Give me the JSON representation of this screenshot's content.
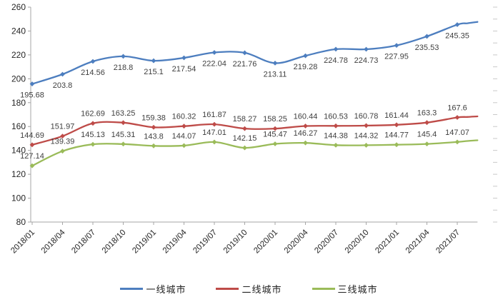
{
  "chart_data": {
    "type": "line",
    "title": "",
    "xlabel": "",
    "ylabel": "",
    "grid": false,
    "legend_position": "bottom",
    "y_axis": {
      "min": 80,
      "max": 260,
      "step": 20
    },
    "y_ticks": [
      "260",
      "240",
      "220",
      "200",
      "180",
      "160",
      "140",
      "120",
      "100",
      "80"
    ],
    "x": [
      "2018/01",
      "2018/04",
      "2018/07",
      "2018/10",
      "2019/01",
      "2019/04",
      "2019/07",
      "2019/10",
      "2020/01",
      "2020/04",
      "2020/07",
      "2020/10",
      "2021/01",
      "2021/04",
      "2021/07"
    ],
    "series": [
      {
        "name": "一线城市",
        "color": "#4D7EBF",
        "label_side": "below",
        "values": [
          195.68,
          203.8,
          214.56,
          218.8,
          215.1,
          217.54,
          222.04,
          221.76,
          213.11,
          219.28,
          224.78,
          224.73,
          227.95,
          235.53,
          245.35
        ],
        "labels": [
          "195.68",
          "203.8",
          "214.56",
          "218.8",
          "215.1",
          "217.54",
          "222.04",
          "221.76",
          "213.11",
          "219.28",
          "224.78",
          "224.73",
          "227.95",
          "235.53",
          "245.35"
        ],
        "tail_estimate": [
          246.5,
          247.6
        ]
      },
      {
        "name": "二线城市",
        "color": "#BE4B48",
        "label_side": "above",
        "values": [
          144.69,
          151.97,
          162.69,
          163.25,
          159.38,
          160.32,
          161.87,
          158.27,
          158.25,
          160.44,
          160.53,
          160.78,
          161.44,
          163.3,
          167.6
        ],
        "labels": [
          "144.69",
          "151.97",
          "162.69",
          "163.25",
          "159.38",
          "160.32",
          "161.87",
          "158.27",
          "158.25",
          "160.44",
          "160.53",
          "160.78",
          "161.44",
          "163.3",
          "167.6"
        ],
        "tail_estimate": [
          168.0,
          168.5
        ]
      },
      {
        "name": "三线城市",
        "color": "#9ABB59",
        "label_side": "above",
        "values": [
          127.14,
          139.39,
          145.13,
          145.31,
          143.8,
          144.07,
          147.01,
          142.15,
          145.47,
          146.27,
          144.38,
          144.32,
          144.77,
          145.4,
          147.07
        ],
        "labels": [
          "127.14",
          "139.39",
          "145.13",
          "145.31",
          "143.8",
          "144.07",
          "147.01",
          "142.15",
          "145.47",
          "146.27",
          "144.38",
          "144.32",
          "144.77",
          "145.4",
          "147.07"
        ],
        "tail_estimate": [
          147.9,
          148.5
        ]
      }
    ]
  },
  "colors": {
    "axis": "#A6A6A6",
    "right_minor_ticks": "#C9C9C9",
    "data_label": "#3F3F3F",
    "axis_label": "#262626"
  }
}
